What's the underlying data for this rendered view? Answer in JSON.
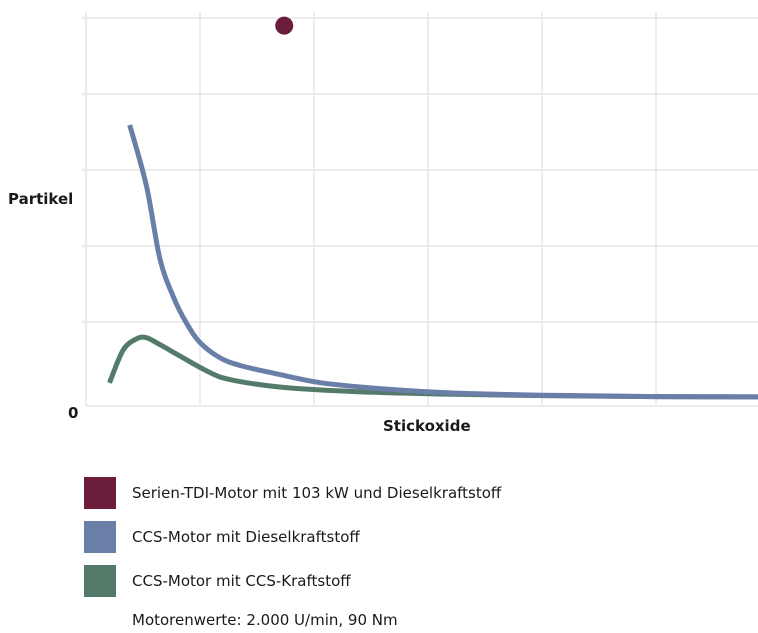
{
  "chart_data": {
    "type": "line",
    "title": "",
    "xlabel": "Stickoxide",
    "ylabel": "Partikel",
    "origin_label": "0",
    "xlim": [
      0,
      100
    ],
    "ylim": [
      0,
      100
    ],
    "grid": true,
    "series": [
      {
        "name": "Serien-TDI-Motor mit 103 kW und Dieselkraftstoff",
        "type": "point",
        "color": "#6b1d3b",
        "points": [
          [
            29.5,
            98
          ]
        ]
      },
      {
        "name": "CCS-Motor mit Dieselkraftstoff",
        "type": "line",
        "color": "#6a7fa8",
        "points": [
          [
            6.5,
            72
          ],
          [
            9,
            56
          ],
          [
            11,
            37
          ],
          [
            13,
            27
          ],
          [
            15,
            20
          ],
          [
            17,
            15
          ],
          [
            20,
            11
          ],
          [
            23,
            9
          ],
          [
            28,
            7
          ],
          [
            35,
            4.5
          ],
          [
            45,
            2.8
          ],
          [
            55,
            1.8
          ],
          [
            70,
            1.2
          ],
          [
            85,
            0.9
          ],
          [
            100,
            0.8
          ]
        ]
      },
      {
        "name": "CCS-Motor mit CCS-Kraftstoff",
        "type": "line",
        "color": "#547b6a",
        "points": [
          [
            3.5,
            4.5
          ],
          [
            5.5,
            13
          ],
          [
            7.5,
            16
          ],
          [
            9,
            16.3
          ],
          [
            11,
            14.5
          ],
          [
            14,
            11.5
          ],
          [
            17,
            8.5
          ],
          [
            20,
            6
          ],
          [
            24,
            4.5
          ],
          [
            30,
            3.2
          ],
          [
            40,
            2.2
          ],
          [
            55,
            1.5
          ],
          [
            70,
            1.1
          ],
          [
            85,
            0.9
          ],
          [
            100,
            0.8
          ]
        ]
      }
    ]
  },
  "footnote": "Motorenwerte: 2.000 U/min, 90 Nm"
}
